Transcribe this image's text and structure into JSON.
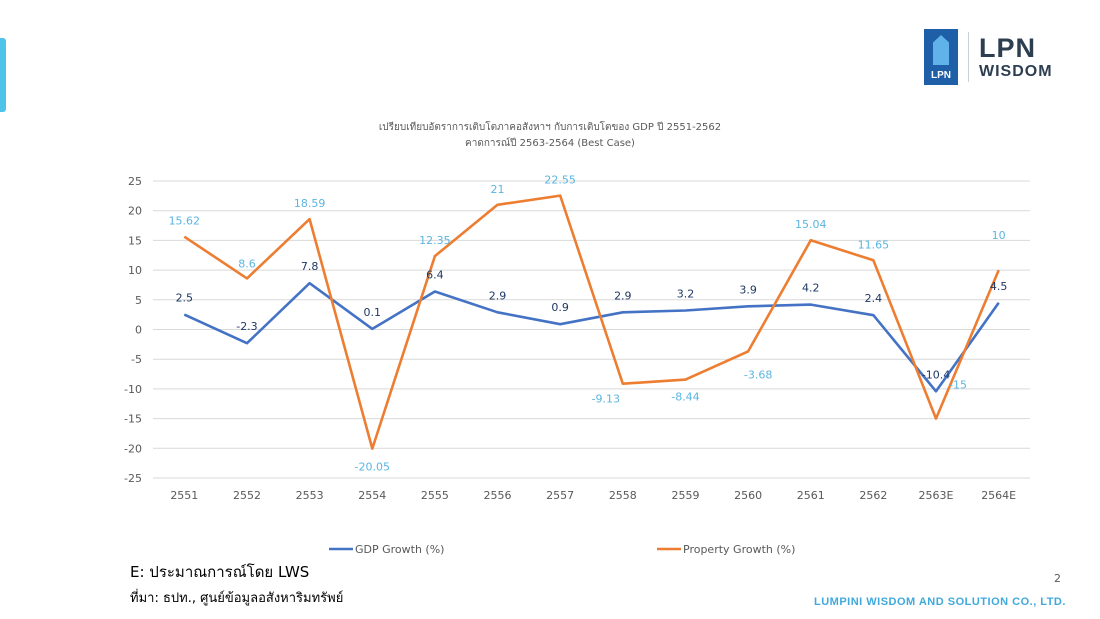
{
  "logo": {
    "badge_text": "LPN",
    "line1": "LPN",
    "line2": "WISDOM"
  },
  "title_line1": "เปรียบเทียบอัตราการเติบโตภาคอสังหาฯ กับการเติบโตของ GDP ปี 2551-2562",
  "title_line2": "คาดการณ์ปี 2563-2564 (Best Case)",
  "note_line1": "E: ประมาณการณ์โดย LWS",
  "note_line2": "ที่มา: ธปท., ศูนย์ข้อมูลอสังหาริมทรัพย์",
  "page_number": "2",
  "company": "LUMPINI WISDOM AND SOLUTION CO., LTD.",
  "colors": {
    "gdp": "#4472c4",
    "property": "#ed7d31",
    "gdp_label": "#1f3864",
    "property_label": "#5bb5e0",
    "grid": "#d9d9d9",
    "axis_text": "#595959"
  },
  "chart_data": {
    "type": "line",
    "categories": [
      "2551",
      "2552",
      "2553",
      "2554",
      "2555",
      "2556",
      "2557",
      "2558",
      "2559",
      "2560",
      "2561",
      "2562",
      "2563E",
      "2564E"
    ],
    "series": [
      {
        "name": "GDP Growth (%)",
        "values": [
          2.5,
          -2.3,
          7.8,
          0.1,
          6.4,
          2.9,
          0.9,
          2.9,
          3.2,
          3.9,
          4.2,
          2.4,
          -10.4,
          4.5
        ],
        "labels": [
          "2.5",
          "-2.3",
          "7.8",
          "0.1",
          "6.4",
          "2.9",
          "0.9",
          "2.9",
          "3.2",
          "3.9",
          "4.2",
          "2.4",
          "-10.4",
          "4.5"
        ]
      },
      {
        "name": "Property Growth (%)",
        "values": [
          15.62,
          8.6,
          18.59,
          -20.05,
          12.35,
          21,
          22.55,
          -9.13,
          -8.44,
          -3.68,
          15.04,
          11.65,
          -15,
          10
        ],
        "labels": [
          "15.62",
          "8.6",
          "18.59",
          "-20.05",
          "12.35",
          "21",
          "22.55",
          "-9.13",
          "-8.44",
          "-3.68",
          "15.04",
          "11.65",
          "-15",
          "10"
        ]
      }
    ],
    "ylim": [
      -25,
      25
    ],
    "yticks": [
      "25",
      "20",
      "15",
      "10",
      "5",
      "0",
      "-5",
      "-10",
      "-15",
      "-20",
      "-25"
    ],
    "grid": true,
    "legend_position": "bottom"
  }
}
